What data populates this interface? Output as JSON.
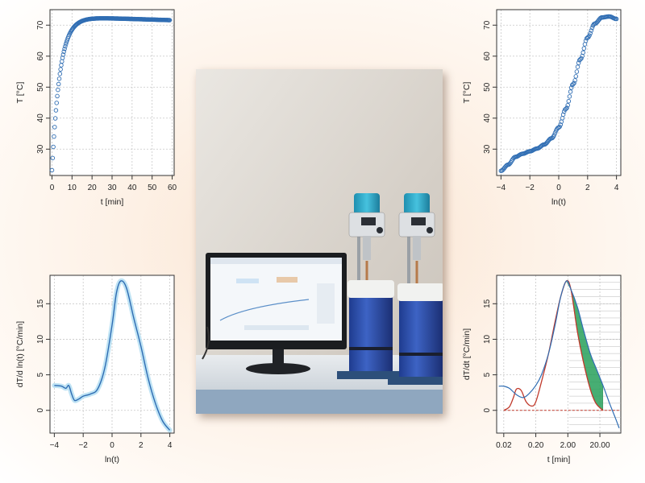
{
  "chart_data": [
    {
      "type": "scatter",
      "xlabel": "t [min]",
      "ylabel": "T [°C]",
      "xlim": [
        -1,
        61
      ],
      "ylim": [
        21.5,
        75
      ],
      "xticks": [
        0,
        10,
        20,
        30,
        40,
        50,
        60
      ],
      "yticks": [
        30,
        40,
        50,
        60,
        70
      ],
      "grid": true,
      "marker": "open-circle",
      "color": "#2f6db3",
      "curve": {
        "model": "T = 72.8 - 49.6*exp(-t/4) - 0.02*t",
        "t_range": [
          0,
          59
        ]
      }
    },
    {
      "type": "scatter",
      "xlabel": "ln(t)",
      "ylabel": "T [°C]",
      "xlim": [
        -4.3,
        4.3
      ],
      "ylim": [
        21.5,
        75
      ],
      "xticks": [
        -4,
        -2,
        0,
        2,
        4
      ],
      "yticks": [
        30,
        40,
        50,
        60,
        70
      ],
      "grid": true,
      "marker": "open-circle",
      "color": "#2f6db3",
      "x": [
        -4,
        -3.5,
        -3,
        -2.5,
        -2,
        -1.5,
        -1,
        -0.5,
        0,
        0.5,
        1,
        1.5,
        2,
        2.5,
        3,
        3.5,
        4
      ],
      "y": [
        23,
        25,
        27.5,
        28.5,
        29.3,
        30.2,
        31.5,
        33.5,
        37,
        43,
        51,
        59,
        66,
        70.5,
        72.5,
        72.8,
        72
      ]
    },
    {
      "type": "line",
      "xlabel": "ln(t)",
      "ylabel": "dT/d ln(t) [°C/min]",
      "xlim": [
        -4.3,
        4.3
      ],
      "ylim": [
        -3.2,
        19
      ],
      "xticks": [
        -4,
        -2,
        0,
        2,
        4
      ],
      "yticks": [
        0,
        5,
        10,
        15
      ],
      "grid": true,
      "color": "#2f6db3",
      "band_color": "#bfe3f4",
      "x": [
        -4,
        -3.5,
        -3.2,
        -3,
        -2.8,
        -2.6,
        -2.3,
        -2,
        -1.5,
        -1,
        -0.5,
        0,
        0.3,
        0.6,
        1,
        1.5,
        2,
        2.5,
        3,
        3.5,
        4
      ],
      "y": [
        3.5,
        3.4,
        3.1,
        3.5,
        2.3,
        1.4,
        1.6,
        2,
        2.3,
        3.0,
        6,
        12,
        16.5,
        18.2,
        17.2,
        13,
        9,
        4.5,
        1,
        -1.5,
        -2.8
      ]
    },
    {
      "type": "area",
      "xlabel": "t [min]",
      "ylabel": "dT/dt [°C/min]",
      "xscale": "log",
      "xlim": [
        0.012,
        90
      ],
      "ylim": [
        -3.2,
        19
      ],
      "xtick_labels": [
        "0.02",
        "0.20",
        "2.00",
        "20.00"
      ],
      "yticks": [
        0,
        5,
        10,
        15
      ],
      "grid": true,
      "series": [
        {
          "color": "#2f6db3",
          "x": [
            0.014,
            0.02,
            0.03,
            0.05,
            0.08,
            0.12,
            0.2,
            0.3,
            0.5,
            0.8,
            1.2,
            1.8,
            2.5,
            4,
            6,
            10,
            15,
            25,
            40,
            60,
            80
          ],
          "y": [
            3.4,
            3.4,
            3.1,
            2.2,
            1.8,
            2.3,
            3.5,
            5,
            8,
            12,
            16,
            18.2,
            17,
            14.5,
            11.5,
            8,
            6,
            3.5,
            1,
            -1,
            -2.5
          ]
        },
        {
          "color": "#c0392b",
          "x": [
            0.02,
            0.03,
            0.04,
            0.05,
            0.07,
            0.1,
            0.15,
            0.2,
            0.3,
            0.5,
            0.8,
            1.2,
            1.8,
            2.5,
            4,
            6,
            10,
            15,
            25
          ],
          "y": [
            0,
            0.5,
            1.8,
            3,
            2.8,
            1.2,
            0.6,
            1.2,
            4,
            8,
            12.5,
            16,
            18.2,
            17,
            11,
            7,
            3,
            1,
            0
          ]
        }
      ],
      "filled_region_color": "#27a05a"
    }
  ]
}
